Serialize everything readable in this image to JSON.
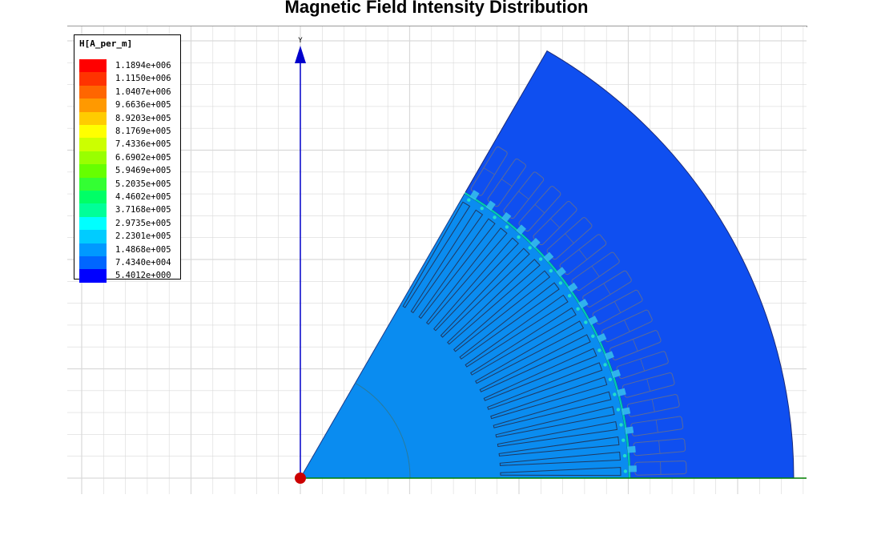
{
  "title": "Magnetic Field Intensity Distribution",
  "axis": {
    "y_label": "Y"
  },
  "legend": {
    "quantity": "H[A_per_m]",
    "entries": [
      {
        "label": "1.1894e+006",
        "color": "#ff0000"
      },
      {
        "label": "1.1150e+006",
        "color": "#ff3300"
      },
      {
        "label": "1.0407e+006",
        "color": "#ff6600"
      },
      {
        "label": "9.6636e+005",
        "color": "#ff9900"
      },
      {
        "label": "8.9203e+005",
        "color": "#ffcc00"
      },
      {
        "label": "8.1769e+005",
        "color": "#ffff00"
      },
      {
        "label": "7.4336e+005",
        "color": "#ccff00"
      },
      {
        "label": "6.6902e+005",
        "color": "#99ff00"
      },
      {
        "label": "5.9469e+005",
        "color": "#66ff00"
      },
      {
        "label": "5.2035e+005",
        "color": "#33ff33"
      },
      {
        "label": "4.4602e+005",
        "color": "#00ff66"
      },
      {
        "label": "3.7168e+005",
        "color": "#00ff99"
      },
      {
        "label": "2.9735e+005",
        "color": "#00ffff"
      },
      {
        "label": "2.2301e+005",
        "color": "#00ccff"
      },
      {
        "label": "1.4868e+005",
        "color": "#0099ff"
      },
      {
        "label": "7.4340e+004",
        "color": "#0066ff"
      },
      {
        "label": "5.4012e+000",
        "color": "#0000ff"
      }
    ]
  },
  "colors": {
    "stator": "#0f4ff0",
    "rotor": "#0a8cf0",
    "grid": "#d9d9d9",
    "axis_y": "#0000cc",
    "axis_x": "#008000",
    "origin": "#cc0000"
  }
}
